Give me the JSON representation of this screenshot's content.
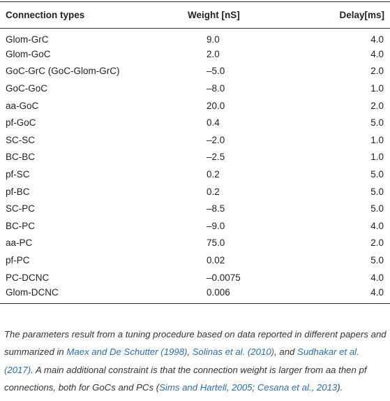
{
  "table": {
    "header": [
      "Connection types",
      "Weight [nS]",
      "Delay[ms]"
    ],
    "rows": [
      [
        "Glom-GrC",
        "9.0",
        "4.0"
      ],
      [
        "Glom-GoC",
        "2.0",
        "4.0"
      ],
      [
        "GoC-GrC (GoC-Glom-GrC)",
        "–5.0",
        "2.0"
      ],
      [
        "GoC-GoC",
        "–8.0",
        "1.0"
      ],
      [
        "aa-GoC",
        "20.0",
        "2.0"
      ],
      [
        "pf-GoC",
        "0.4",
        "5.0"
      ],
      [
        "SC-SC",
        "–2.0",
        "1.0"
      ],
      [
        "BC-BC",
        "–2.5",
        "1.0"
      ],
      [
        "pf-SC",
        "0.2",
        "5.0"
      ],
      [
        "pf-BC",
        "0.2",
        "5.0"
      ],
      [
        "SC-PC",
        "–8.5",
        "5.0"
      ],
      [
        "BC-PC",
        "–9.0",
        "4.0"
      ],
      [
        "aa-PC",
        "75.0",
        "2.0"
      ],
      [
        "pf-PC",
        "0.02",
        "5.0"
      ],
      [
        "PC-DCNC",
        "–0.0075",
        "4.0"
      ],
      [
        "Glom-DCNC",
        "0.006",
        "4.0"
      ]
    ]
  },
  "footnote": [
    "The parameters result from a tuning procedure based on data reported in different papers and summarized in ",
    "Maex and De Schutter (1998)",
    ", ",
    "Solinas et al. (2010)",
    ", and ",
    "Sudhakar et al. (2017)",
    ". A main additional constraint is that the connection weight is larger from aa then pf connections, both for GoCs and PCs (",
    "Sims and Hartell, 2005",
    "; ",
    "Cesana et al., 2013",
    ")."
  ]
}
